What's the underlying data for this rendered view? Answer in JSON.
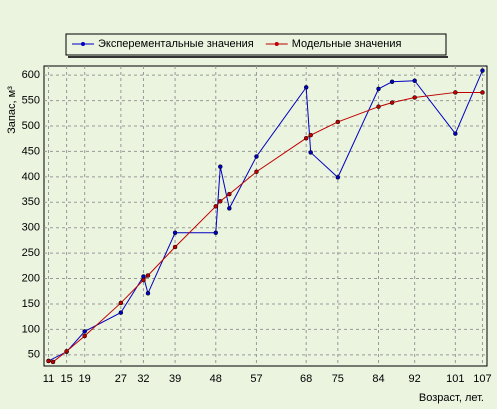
{
  "chart_data": {
    "type": "line",
    "y_label": "Запас, м³",
    "x_label": "Возраст, лет.",
    "xlim": [
      10,
      108
    ],
    "ylim": [
      28,
      618
    ],
    "xticks": [
      11,
      15,
      19,
      27,
      32,
      39,
      48,
      57,
      68,
      75,
      84,
      92,
      101,
      107
    ],
    "yticks": [
      50,
      100,
      150,
      200,
      250,
      300,
      350,
      400,
      450,
      500,
      550,
      600
    ],
    "grid": true,
    "legend": "top",
    "series": [
      {
        "name": "Эксперементальные значения",
        "color": "#0000c0",
        "x": [
          11,
          15,
          19,
          27,
          32,
          33,
          39,
          48,
          49,
          51,
          57,
          68,
          69,
          75,
          84,
          87,
          92,
          101,
          107
        ],
        "values": [
          38,
          56,
          96,
          133,
          204,
          171,
          290,
          290,
          420,
          338,
          440,
          576,
          448,
          399,
          573,
          587,
          589,
          485,
          609
        ]
      },
      {
        "name": "Модельные значения",
        "color": "#c00000",
        "x": [
          11,
          12,
          15,
          19,
          27,
          32,
          33,
          39,
          48,
          49,
          51,
          57,
          68,
          69,
          75,
          84,
          87,
          92,
          101,
          107
        ],
        "values": [
          38,
          36,
          57,
          87,
          152,
          197,
          206,
          262,
          342,
          352,
          366,
          410,
          476,
          482,
          508,
          538,
          546,
          556,
          566,
          566
        ]
      }
    ]
  }
}
